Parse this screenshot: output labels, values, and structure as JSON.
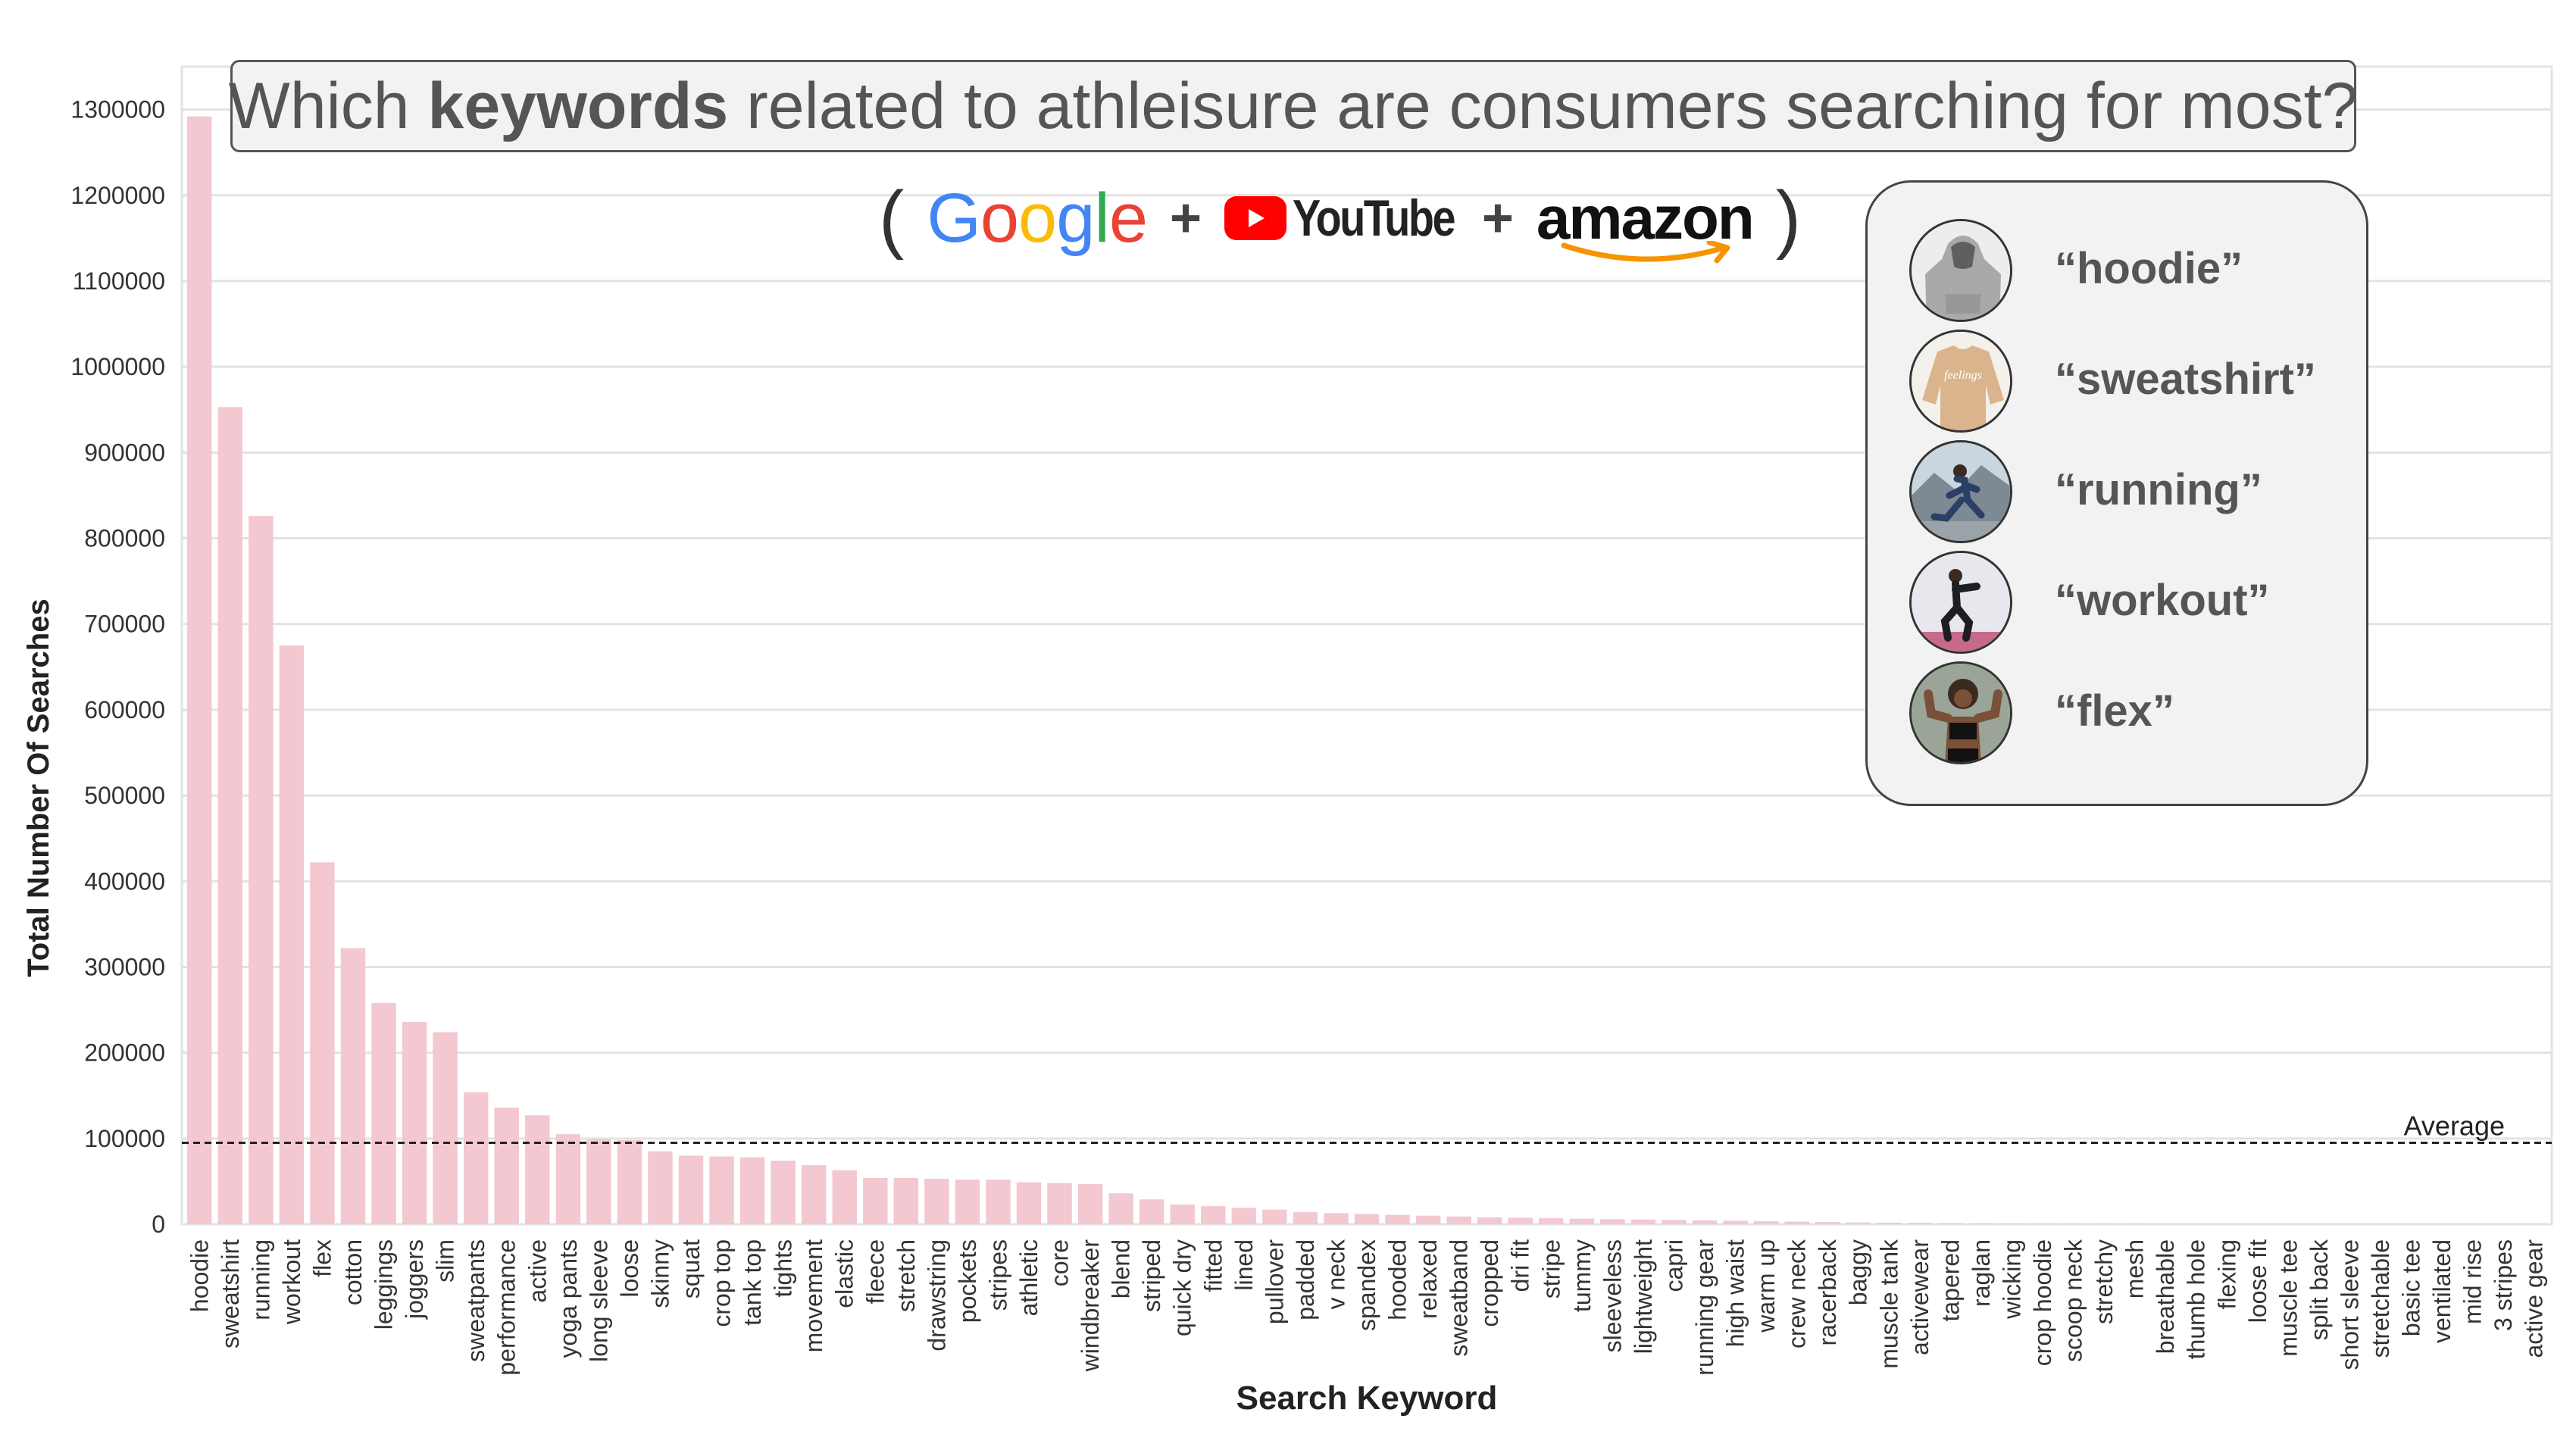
{
  "title": {
    "prefix": "Which ",
    "bold": "keywords",
    "suffix": " related to athleisure are consumers searching for most?"
  },
  "sources": {
    "open_paren": "(",
    "google": [
      "G",
      "o",
      "o",
      "g",
      "l",
      "e"
    ],
    "google_colors": [
      "#4285F4",
      "#EA4335",
      "#FBBC05",
      "#4285F4",
      "#34A853",
      "#EA4335"
    ],
    "plus": "+",
    "youtube": "YouTube",
    "amazon": "amazon",
    "close_paren": ")",
    "youtube_color": "#ff0000",
    "amazon_smile_color": "#f79400"
  },
  "top_keywords": [
    {
      "label": "“hoodie”",
      "icon": "hoodie-photo"
    },
    {
      "label": "“sweatshirt”",
      "icon": "sweatshirt-photo"
    },
    {
      "label": "“running”",
      "icon": "runner-photo"
    },
    {
      "label": "“workout”",
      "icon": "workout-photo"
    },
    {
      "label": "“flex”",
      "icon": "flex-photo"
    }
  ],
  "chart_data": {
    "type": "bar",
    "xlabel": "Search Keyword",
    "ylabel": "Total Number Of Searches",
    "ylim": [
      0,
      1350000
    ],
    "yticks": [
      0,
      100000,
      200000,
      300000,
      400000,
      500000,
      600000,
      700000,
      800000,
      900000,
      1000000,
      1100000,
      1200000,
      1300000
    ],
    "grid": true,
    "bar_color": "#f3c8d0",
    "average": {
      "label": "Average",
      "value": 95000
    },
    "categories": [
      "hoodie",
      "sweatshirt",
      "running",
      "workout",
      "flex",
      "cotton",
      "leggings",
      "joggers",
      "slim",
      "sweatpants",
      "performance",
      "active",
      "yoga pants",
      "long sleeve",
      "loose",
      "skinny",
      "squat",
      "crop top",
      "tank top",
      "tights",
      "movement",
      "elastic",
      "fleece",
      "stretch",
      "drawstring",
      "pockets",
      "stripes",
      "athletic",
      "core",
      "windbreaker",
      "blend",
      "striped",
      "quick dry",
      "fitted",
      "lined",
      "pullover",
      "padded",
      "v neck",
      "spandex",
      "hooded",
      "relaxed",
      "sweatband",
      "cropped",
      "dri fit",
      "stripe",
      "tummy",
      "sleeveless",
      "lightweight",
      "capri",
      "running gear",
      "high waist",
      "warm up",
      "crew neck",
      "racerback",
      "baggy",
      "muscle tank",
      "activewear",
      "tapered",
      "raglan",
      "wicking",
      "crop hoodie",
      "scoop neck",
      "stretchy",
      "mesh",
      "breathable",
      "thumb hole",
      "flexing",
      "loose fit",
      "muscle tee",
      "split back",
      "short sleeve",
      "stretchable",
      "basic tee",
      "ventilated",
      "mid rise",
      "3 stripes",
      "active gear"
    ],
    "values": [
      1292000,
      953000,
      826000,
      675000,
      422000,
      322000,
      258000,
      236000,
      224000,
      154000,
      136000,
      127000,
      105000,
      99000,
      98000,
      85000,
      80000,
      79000,
      78000,
      74000,
      69000,
      63000,
      54000,
      54000,
      53000,
      52000,
      52000,
      49000,
      48000,
      47000,
      36000,
      29000,
      23000,
      21000,
      19000,
      17000,
      14000,
      13000,
      12000,
      11000,
      10000,
      9000,
      8000,
      7500,
      7000,
      6500,
      6000,
      5500,
      5000,
      4500,
      4000,
      3500,
      3000,
      2500,
      2000,
      1800,
      1600,
      1400,
      1200,
      1000,
      900,
      800,
      700,
      600,
      500,
      450,
      400,
      350,
      300,
      250,
      200,
      180,
      150,
      120,
      100,
      80,
      60
    ]
  }
}
